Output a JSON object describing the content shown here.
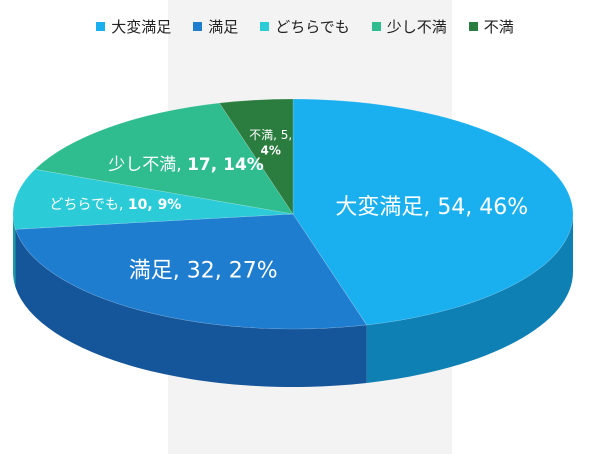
{
  "chart_data": {
    "type": "pie",
    "style": "3d",
    "legend_position": "top",
    "categories": [
      "大変満足",
      "満足",
      "どちらでも",
      "少し不満",
      "不満"
    ],
    "values": [
      54,
      32,
      10,
      17,
      5
    ],
    "percents": [
      46,
      27,
      9,
      14,
      4
    ],
    "data_labels": [
      "大変満足, 54, 46%",
      "満足, 32, 27%",
      "どちらでも, 10, 9%",
      "少し不満, 17, 14%",
      "不満, 5, 4%"
    ],
    "colors": [
      "#1ab0f0",
      "#1f7dd0",
      "#2ccbd8",
      "#2fbd8f",
      "#2a7d3f"
    ],
    "side_colors": [
      "#0f80b4",
      "#15559a",
      "#1b9aa4",
      "#1f8d68",
      "#1b5a2b"
    ]
  }
}
